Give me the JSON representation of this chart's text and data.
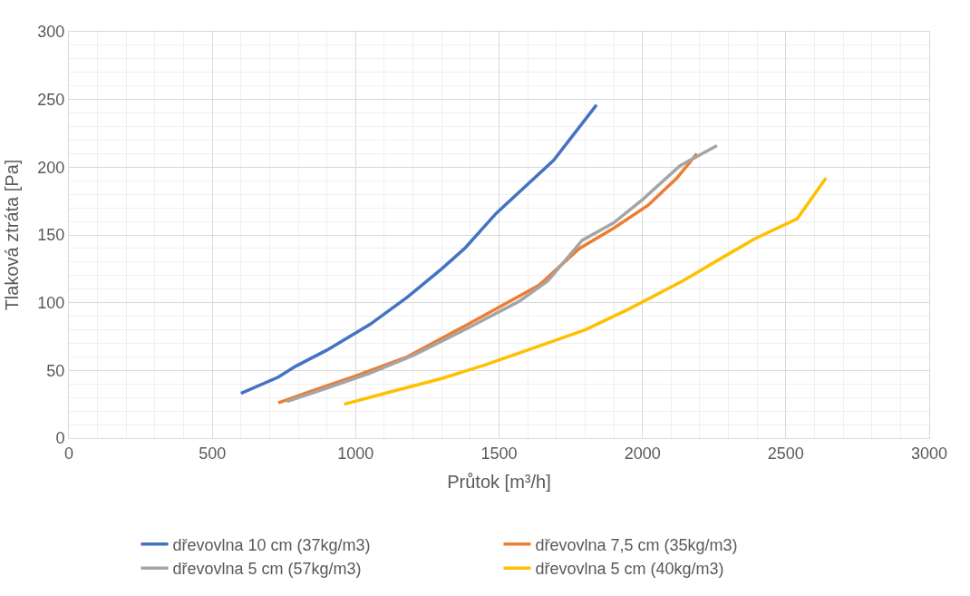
{
  "chart_data": {
    "type": "line",
    "xlabel": "Průtok [m³/h]",
    "ylabel": "Tlaková ztráta [Pa]",
    "xlim": [
      0,
      3000
    ],
    "xticks": [
      0,
      500,
      1000,
      1500,
      2000,
      2500,
      3000
    ],
    "ylim": [
      0,
      300
    ],
    "yticks": [
      0,
      50,
      100,
      150,
      200,
      250,
      300
    ],
    "grid": true,
    "legend": "bottom",
    "marker": "none",
    "line_style": "solid",
    "series": [
      {
        "name": "dřevovlna 10 cm (37kg/m3)",
        "color": "#4472c4",
        "x": [
          600,
          730,
          790,
          900,
          1050,
          1180,
          1300,
          1380,
          1490,
          1690,
          1840
        ],
        "values": [
          33,
          45,
          53,
          65,
          84,
          104,
          125,
          140,
          166,
          205,
          246
        ]
      },
      {
        "name": "dřevovlna 7,5 cm (35kg/m3)",
        "color": "#ed7d31",
        "x": [
          730,
          850,
          1000,
          1180,
          1400,
          1640,
          1780,
          1900,
          2020,
          2120,
          2190
        ],
        "values": [
          26,
          35,
          46,
          60,
          85,
          113,
          140,
          155,
          172,
          192,
          210
        ]
      },
      {
        "name": "dřevovlna 5 cm (57kg/m3)",
        "color": "#a5a5a5",
        "x": [
          760,
          900,
          1050,
          1200,
          1380,
          1570,
          1670,
          1790,
          1900,
          2000,
          2130,
          2260
        ],
        "values": [
          27,
          37,
          48,
          61,
          80,
          101,
          116,
          146,
          159,
          176,
          201,
          216
        ]
      },
      {
        "name": "dřevovlna 5 cm (40kg/m3)",
        "color": "#ffc000",
        "x": [
          960,
          1100,
          1300,
          1450,
          1600,
          1800,
          1950,
          2140,
          2260,
          2390,
          2540,
          2640
        ],
        "values": [
          25,
          33,
          44,
          54,
          65,
          80,
          95,
          116,
          131,
          147,
          162,
          192
        ]
      }
    ]
  }
}
